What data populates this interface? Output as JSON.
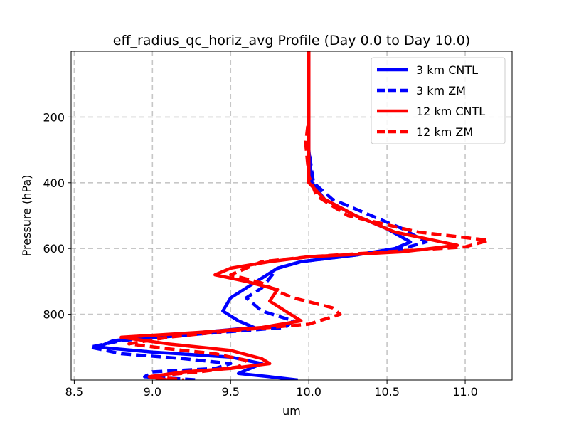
{
  "chart_data": {
    "type": "line",
    "title": "eff_radius_qc_horiz_avg Profile (Day 0.0 to Day 10.0)",
    "xlabel": "um",
    "ylabel": "Pressure (hPa)",
    "xlim": [
      8.48,
      11.3
    ],
    "ylim": [
      1000,
      0
    ],
    "y_inverted": true,
    "grid": true,
    "legend_position": "top-right",
    "xticks": [
      8.5,
      9.0,
      9.5,
      10.0,
      10.5,
      11.0
    ],
    "xtick_labels": [
      "8.5",
      "9.0",
      "9.5",
      "10.0",
      "10.5",
      "11.0"
    ],
    "yticks": [
      200,
      400,
      600,
      800
    ],
    "ytick_labels": [
      "200",
      "400",
      "600",
      "800"
    ],
    "series": [
      {
        "name": "3 km CNTL",
        "color": "#0000ff",
        "style": "solid",
        "points": [
          [
            10.0,
            0
          ],
          [
            10.0,
            100
          ],
          [
            10.0,
            200
          ],
          [
            10.0,
            300
          ],
          [
            10.02,
            400
          ],
          [
            10.1,
            450
          ],
          [
            10.3,
            500
          ],
          [
            10.5,
            540
          ],
          [
            10.65,
            580
          ],
          [
            10.55,
            600
          ],
          [
            10.3,
            620
          ],
          [
            9.95,
            640
          ],
          [
            9.8,
            660
          ],
          [
            9.7,
            690
          ],
          [
            9.6,
            720
          ],
          [
            9.5,
            750
          ],
          [
            9.45,
            790
          ],
          [
            9.55,
            820
          ],
          [
            9.65,
            840
          ],
          [
            9.2,
            860
          ],
          [
            8.75,
            880
          ],
          [
            8.65,
            900
          ],
          [
            9.0,
            915
          ],
          [
            9.5,
            930
          ],
          [
            9.7,
            950
          ],
          [
            9.6,
            970
          ],
          [
            9.55,
            980
          ],
          [
            9.75,
            990
          ],
          [
            9.93,
            1000
          ]
        ]
      },
      {
        "name": "3 km ZM",
        "color": "#0000ff",
        "style": "dashed",
        "points": [
          [
            10.0,
            0
          ],
          [
            10.0,
            100
          ],
          [
            10.0,
            200
          ],
          [
            10.0,
            300
          ],
          [
            10.03,
            400
          ],
          [
            10.15,
            450
          ],
          [
            10.4,
            500
          ],
          [
            10.6,
            540
          ],
          [
            10.75,
            580
          ],
          [
            10.6,
            600
          ],
          [
            10.3,
            620
          ],
          [
            9.95,
            640
          ],
          [
            9.8,
            660
          ],
          [
            9.75,
            690
          ],
          [
            9.7,
            720
          ],
          [
            9.6,
            750
          ],
          [
            9.7,
            790
          ],
          [
            9.9,
            820
          ],
          [
            9.85,
            840
          ],
          [
            9.3,
            860
          ],
          [
            8.8,
            880
          ],
          [
            8.6,
            900
          ],
          [
            8.8,
            920
          ],
          [
            9.2,
            935
          ],
          [
            9.5,
            950
          ],
          [
            9.4,
            965
          ],
          [
            9.0,
            975
          ],
          [
            8.95,
            990
          ],
          [
            9.3,
            1000
          ]
        ]
      },
      {
        "name": "12 km CNTL",
        "color": "#ff0000",
        "style": "solid",
        "points": [
          [
            10.0,
            0
          ],
          [
            10.0,
            100
          ],
          [
            10.0,
            200
          ],
          [
            10.0,
            300
          ],
          [
            10.0,
            400
          ],
          [
            10.1,
            450
          ],
          [
            10.3,
            500
          ],
          [
            10.55,
            550
          ],
          [
            10.95,
            590
          ],
          [
            10.6,
            610
          ],
          [
            10.0,
            625
          ],
          [
            9.75,
            640
          ],
          [
            9.5,
            660
          ],
          [
            9.4,
            680
          ],
          [
            9.6,
            700
          ],
          [
            9.8,
            725
          ],
          [
            9.75,
            760
          ],
          [
            9.85,
            790
          ],
          [
            9.95,
            820
          ],
          [
            9.7,
            840
          ],
          [
            9.3,
            855
          ],
          [
            8.8,
            870
          ],
          [
            9.1,
            890
          ],
          [
            9.5,
            910
          ],
          [
            9.7,
            935
          ],
          [
            9.75,
            950
          ],
          [
            9.5,
            965
          ],
          [
            9.2,
            975
          ],
          [
            8.98,
            990
          ],
          [
            9.1,
            1000
          ]
        ]
      },
      {
        "name": "12 km ZM",
        "color": "#ff0000",
        "style": "dashed",
        "points": [
          [
            10.0,
            0
          ],
          [
            10.0,
            100
          ],
          [
            10.0,
            200
          ],
          [
            9.98,
            280
          ],
          [
            10.0,
            380
          ],
          [
            10.05,
            440
          ],
          [
            10.25,
            500
          ],
          [
            10.7,
            550
          ],
          [
            11.15,
            575
          ],
          [
            11.0,
            595
          ],
          [
            10.5,
            610
          ],
          [
            10.0,
            625
          ],
          [
            9.7,
            640
          ],
          [
            9.6,
            660
          ],
          [
            9.5,
            680
          ],
          [
            9.7,
            705
          ],
          [
            9.8,
            730
          ],
          [
            9.9,
            750
          ],
          [
            10.15,
            780
          ],
          [
            10.2,
            800
          ],
          [
            10.0,
            830
          ],
          [
            9.5,
            850
          ],
          [
            9.1,
            870
          ],
          [
            8.85,
            890
          ],
          [
            9.1,
            905
          ],
          [
            9.4,
            920
          ],
          [
            9.6,
            940
          ],
          [
            9.55,
            960
          ],
          [
            9.3,
            975
          ],
          [
            9.0,
            988
          ],
          [
            9.2,
            1000
          ]
        ]
      }
    ]
  }
}
